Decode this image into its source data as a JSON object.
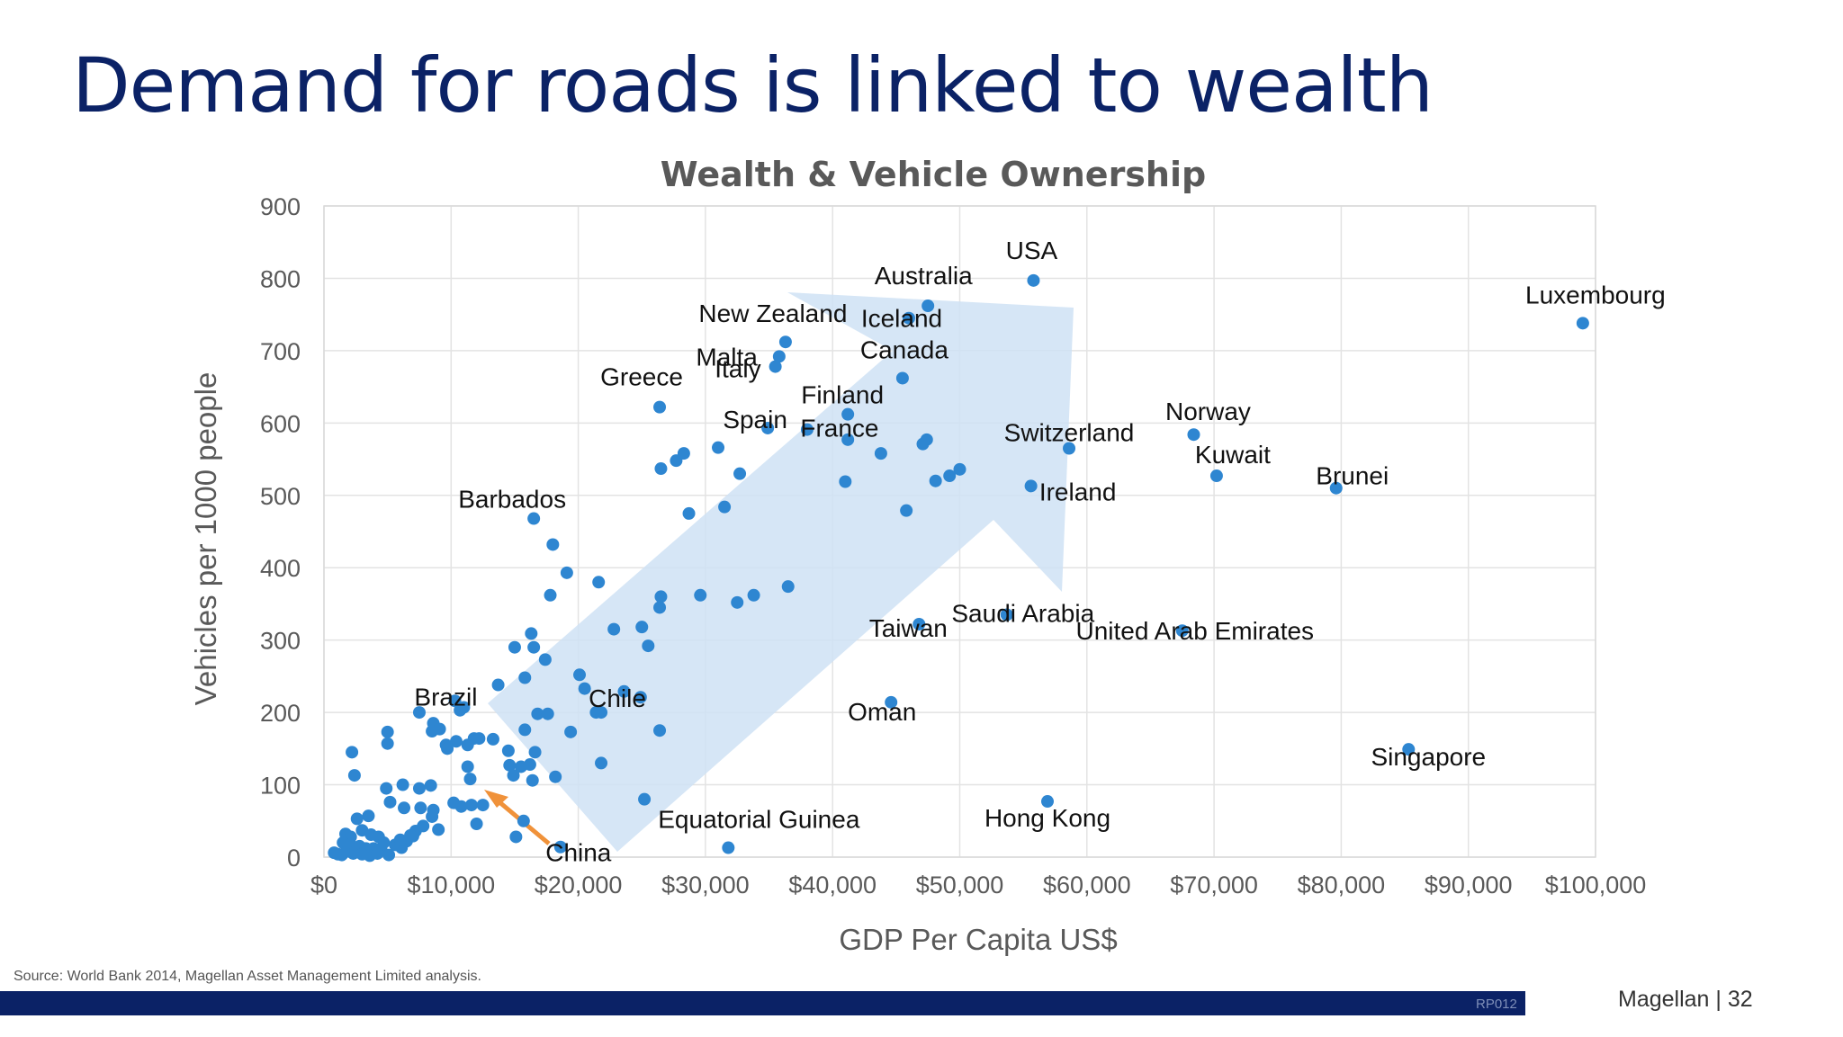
{
  "slide": {
    "title": "Demand for roads is linked to wealth",
    "source": "Source: World Bank 2014, Magellan Asset Management Limited analysis.",
    "footer_code": "RP012",
    "footer_brand": "Magellan | 32"
  },
  "colors": {
    "title": "#0b2266",
    "footer_bar": "#0b2266",
    "marker": "#2e86d1",
    "trend_arrow": "#cfe2f5",
    "china_arrow": "#f0923a"
  },
  "chart_data": {
    "type": "scatter",
    "title": "Wealth & Vehicle Ownership",
    "xlabel": "GDP Per Capita US$",
    "ylabel": "Vehicles per 1000 people",
    "xlim": [
      0,
      100000
    ],
    "ylim": [
      0,
      900
    ],
    "x_ticks": [
      "$0",
      "$10,000",
      "$20,000",
      "$30,000",
      "$40,000",
      "$50,000",
      "$60,000",
      "$70,000",
      "$80,000",
      "$90,000",
      "$100,000"
    ],
    "y_ticks": [
      "0",
      "100",
      "200",
      "300",
      "400",
      "500",
      "600",
      "700",
      "800",
      "900"
    ],
    "grid": true,
    "legend": "none",
    "labeled_points": [
      {
        "label": "USA",
        "x": 55800,
        "y": 797
      },
      {
        "label": "Australia",
        "x": 47500,
        "y": 762
      },
      {
        "label": "Luxembourg",
        "x": 99000,
        "y": 738
      },
      {
        "label": "Iceland",
        "x": 46000,
        "y": 745
      },
      {
        "label": "New Zealand",
        "x": 36300,
        "y": 712
      },
      {
        "label": "Malta",
        "x": 35800,
        "y": 692
      },
      {
        "label": "Italy",
        "x": 35500,
        "y": 678
      },
      {
        "label": "Canada",
        "x": 45500,
        "y": 662
      },
      {
        "label": "Greece",
        "x": 26400,
        "y": 622
      },
      {
        "label": "Finland",
        "x": 41200,
        "y": 612
      },
      {
        "label": "Spain",
        "x": 34900,
        "y": 593
      },
      {
        "label": "France",
        "x": 38000,
        "y": 591
      },
      {
        "label": "Switzerland",
        "x": 58600,
        "y": 565
      },
      {
        "label": "Norway",
        "x": 68400,
        "y": 584
      },
      {
        "label": "Kuwait",
        "x": 70200,
        "y": 527
      },
      {
        "label": "Brunei",
        "x": 79600,
        "y": 510
      },
      {
        "label": "Ireland",
        "x": 55600,
        "y": 513
      },
      {
        "label": "Barbados",
        "x": 16500,
        "y": 468
      },
      {
        "label": "Saudi Arabia",
        "x": 53700,
        "y": 335
      },
      {
        "label": "Taiwan",
        "x": 46800,
        "y": 322
      },
      {
        "label": "United Arab Emirates",
        "x": 67500,
        "y": 313
      },
      {
        "label": "Brazil",
        "x": 11000,
        "y": 207
      },
      {
        "label": "Chile",
        "x": 21800,
        "y": 200
      },
      {
        "label": "Oman",
        "x": 44600,
        "y": 214
      },
      {
        "label": "Singapore",
        "x": 85300,
        "y": 149
      },
      {
        "label": "Hong Kong",
        "x": 56900,
        "y": 77
      },
      {
        "label": "Equatorial Guinea",
        "x": 31800,
        "y": 13
      },
      {
        "label": "China",
        "x": 18600,
        "y": 14
      }
    ],
    "other_points": [
      [
        18000,
        432
      ],
      [
        19100,
        393
      ],
      [
        17800,
        362
      ],
      [
        21600,
        380
      ],
      [
        16300,
        309
      ],
      [
        15000,
        290
      ],
      [
        16500,
        290
      ],
      [
        17400,
        273
      ],
      [
        22800,
        315
      ],
      [
        25000,
        318
      ],
      [
        25500,
        292
      ],
      [
        26500,
        360
      ],
      [
        26400,
        345
      ],
      [
        29600,
        362
      ],
      [
        32500,
        352
      ],
      [
        33800,
        362
      ],
      [
        36500,
        374
      ],
      [
        26500,
        537
      ],
      [
        27700,
        548
      ],
      [
        28300,
        558
      ],
      [
        31000,
        566
      ],
      [
        32700,
        530
      ],
      [
        28700,
        475
      ],
      [
        31500,
        484
      ],
      [
        41000,
        519
      ],
      [
        41200,
        577
      ],
      [
        43800,
        558
      ],
      [
        47100,
        571
      ],
      [
        47400,
        577
      ],
      [
        45800,
        479
      ],
      [
        48100,
        520
      ],
      [
        49200,
        527
      ],
      [
        50000,
        536
      ],
      [
        20100,
        252
      ],
      [
        20500,
        233
      ],
      [
        21400,
        200
      ],
      [
        23600,
        229
      ],
      [
        24900,
        221
      ],
      [
        26400,
        175
      ],
      [
        21800,
        130
      ],
      [
        25200,
        80
      ],
      [
        19400,
        173
      ],
      [
        18200,
        111
      ],
      [
        16400,
        106
      ],
      [
        16200,
        128
      ],
      [
        16600,
        145
      ],
      [
        15800,
        176
      ],
      [
        16800,
        198
      ],
      [
        17600,
        198
      ],
      [
        15800,
        248
      ],
      [
        13700,
        238
      ],
      [
        14500,
        147
      ],
      [
        14600,
        127
      ],
      [
        14900,
        113
      ],
      [
        15500,
        125
      ],
      [
        11800,
        164
      ],
      [
        12200,
        164
      ],
      [
        13300,
        163
      ],
      [
        11300,
        155
      ],
      [
        11300,
        125
      ],
      [
        11500,
        108
      ],
      [
        10300,
        216
      ],
      [
        10700,
        203
      ],
      [
        10400,
        160
      ],
      [
        9600,
        155
      ],
      [
        9700,
        150
      ],
      [
        8600,
        185
      ],
      [
        8500,
        174
      ],
      [
        9100,
        177
      ],
      [
        7500,
        200
      ],
      [
        5000,
        173
      ],
      [
        5000,
        157
      ],
      [
        6200,
        100
      ],
      [
        7500,
        95
      ],
      [
        8400,
        99
      ],
      [
        4900,
        95
      ],
      [
        5200,
        76
      ],
      [
        7600,
        68
      ],
      [
        8600,
        65
      ],
      [
        6300,
        68
      ],
      [
        8500,
        56
      ],
      [
        10200,
        75
      ],
      [
        10800,
        70
      ],
      [
        11600,
        72
      ],
      [
        12500,
        72
      ],
      [
        12000,
        46
      ],
      [
        15700,
        50
      ],
      [
        15100,
        28
      ],
      [
        2200,
        145
      ],
      [
        2400,
        113
      ],
      [
        2600,
        53
      ],
      [
        3500,
        57
      ],
      [
        3000,
        37
      ],
      [
        1700,
        32
      ],
      [
        2100,
        28
      ],
      [
        3700,
        31
      ],
      [
        4300,
        28
      ],
      [
        4700,
        20
      ],
      [
        5600,
        17
      ],
      [
        6500,
        22
      ],
      [
        7000,
        29
      ],
      [
        7200,
        36
      ],
      [
        1500,
        20
      ],
      [
        2100,
        17
      ],
      [
        2800,
        15
      ],
      [
        3300,
        12
      ],
      [
        3900,
        12
      ],
      [
        4500,
        10
      ],
      [
        6100,
        13
      ],
      [
        800,
        6
      ],
      [
        1100,
        4
      ],
      [
        1400,
        3
      ],
      [
        1800,
        8
      ],
      [
        2300,
        5
      ],
      [
        3000,
        4
      ],
      [
        3600,
        2
      ],
      [
        4200,
        5
      ],
      [
        5100,
        3
      ],
      [
        6000,
        24
      ],
      [
        6800,
        30
      ],
      [
        7800,
        43
      ],
      [
        9000,
        38
      ]
    ]
  }
}
